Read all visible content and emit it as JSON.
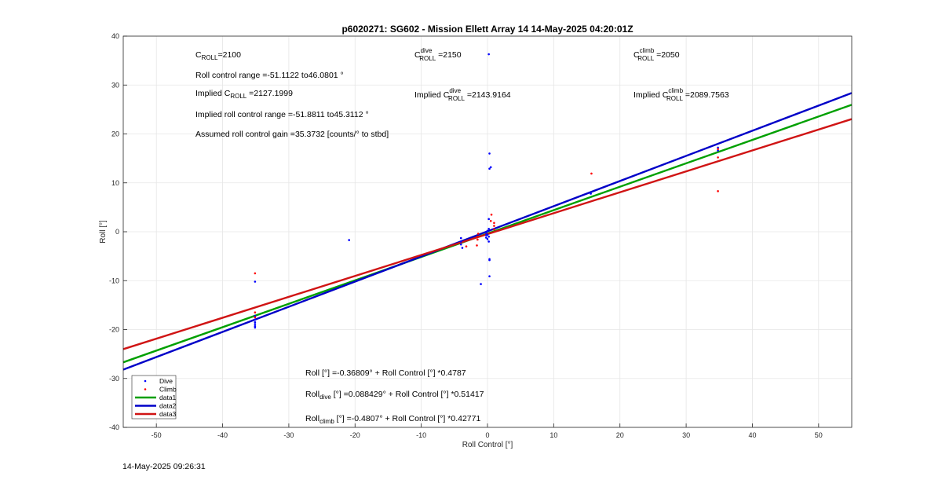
{
  "chart_data": {
    "type": "scatter",
    "title": "p6020271: SG602 - Mission Ellett Array 14 14-May-2025 04:20:01Z",
    "xlabel": "Roll Control [°]",
    "ylabel": "Roll [°]",
    "xlim": [
      -55,
      55
    ],
    "ylim": [
      -40,
      40
    ],
    "xticks": [
      -50,
      -40,
      -30,
      -20,
      -10,
      0,
      10,
      20,
      30,
      40,
      50
    ],
    "yticks": [
      -40,
      -30,
      -20,
      -10,
      0,
      10,
      20,
      30,
      40
    ],
    "grid": true,
    "legend_position": "bottom-left",
    "legend": [
      "Dive",
      "Climb",
      "data1",
      "data2",
      "data3"
    ],
    "series": [
      {
        "name": "Dive",
        "kind": "points",
        "color": "#0000ff",
        "x": [
          -35.1,
          -35.1,
          -35.1,
          -35.1,
          -35.1,
          -35.1,
          -35.1,
          -20.9,
          -4.0,
          -4.0,
          -4.0,
          -3.8,
          -1.0,
          -0.2,
          -0.2,
          -0.2,
          0.0,
          0.0,
          0.0,
          0.2,
          0.2,
          0.2,
          0.2,
          0.3,
          0.3,
          0.3,
          0.3,
          0.5,
          0.3,
          0.2,
          15.6,
          34.8,
          34.8
        ],
        "y": [
          -10.2,
          -17.2,
          -18.0,
          -18.5,
          -18.9,
          -19.3,
          -19.6,
          -1.7,
          -1.3,
          -2.0,
          -2.6,
          -3.3,
          -10.7,
          -0.7,
          -1.2,
          -0.2,
          0.2,
          -0.6,
          -1.5,
          -2.0,
          -1.0,
          0.6,
          2.6,
          -5.6,
          -5.8,
          -9.1,
          12.9,
          13.2,
          16.0,
          36.3,
          7.8,
          16.6,
          17.2
        ]
      },
      {
        "name": "Climb",
        "kind": "points",
        "color": "#ff0000",
        "x": [
          -35.1,
          -35.1,
          -35.1,
          -3.2,
          -1.6,
          -1.5,
          -1.5,
          -1.4,
          0.5,
          0.6,
          1.0,
          1.0,
          1.0,
          15.7,
          34.8,
          34.8,
          34.8
        ],
        "y": [
          -8.5,
          -16.5,
          -17.5,
          -3.0,
          -2.8,
          -1.6,
          -1.0,
          -0.4,
          2.2,
          3.5,
          0.5,
          1.2,
          1.8,
          11.9,
          8.3,
          15.2,
          16.9
        ]
      },
      {
        "name": "data1",
        "kind": "line",
        "color": "#00a000",
        "intercept": -0.36809,
        "slope": 0.4787
      },
      {
        "name": "data2",
        "kind": "line",
        "color": "#0000c8",
        "intercept": 0.088429,
        "slope": 0.51417
      },
      {
        "name": "data3",
        "kind": "line",
        "color": "#d01414",
        "intercept": -0.4807,
        "slope": 0.42771
      }
    ]
  },
  "annotations": {
    "c_roll": {
      "main": "C",
      "sub": "ROLL",
      "rest": "=2100"
    },
    "roll_range": "Roll control range =-51.1122 to46.0801 °",
    "implied_c_roll": {
      "pre": "Implied C",
      "sub": "ROLL",
      "rest": " =2127.1999"
    },
    "implied_range": "Implied roll control range =-51.8811 to45.3112 °",
    "assumed_gain": "Assumed roll control gain =35.3732 [counts/° to stbd]",
    "c_roll_dive": {
      "main": "C",
      "sup": "dive",
      "sub": "ROLL",
      "rest": " =2150"
    },
    "implied_dive": {
      "pre": "Implied C",
      "sup": "dive",
      "sub": "ROLL",
      "rest": " =2143.9164"
    },
    "c_roll_climb": {
      "main": "C",
      "sup": "climb",
      "sub": "ROLL",
      "rest": " =2050"
    },
    "implied_climb": {
      "pre": "Implied C",
      "sup": "climb",
      "sub": "ROLL",
      "rest": " =2089.7563"
    },
    "fit_all": "Roll [°] =-0.36809° + Roll Control [°] *0.4787",
    "fit_dive": {
      "pre": "Roll",
      "sub": "dive",
      "rest": " [°] =0.088429° + Roll Control [°] *0.51417"
    },
    "fit_climb": {
      "pre": "Roll",
      "sub": "climb",
      "rest": " [°] =-0.4807° + Roll Control [°] *0.42771"
    }
  },
  "timestamp": "14-May-2025 09:26:31"
}
